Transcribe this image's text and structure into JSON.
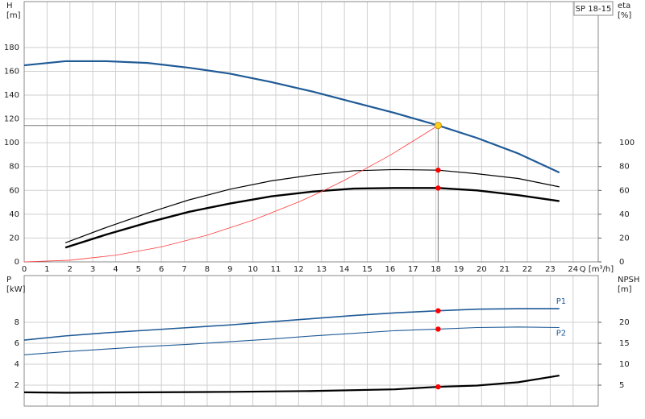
{
  "chart_data": [
    {
      "type": "line",
      "xlim": [
        0,
        25.1
      ],
      "xticks": [
        0,
        1,
        2,
        3,
        4,
        5,
        6,
        7,
        8,
        9,
        10,
        11,
        12,
        13,
        14,
        15,
        16,
        17,
        18,
        19,
        20,
        21,
        22,
        23,
        24
      ],
      "xtick_labels": true,
      "xlabel": "Q [m³/h]",
      "ylim": [
        0,
        218.5
      ],
      "yticks": [
        0,
        20,
        40,
        60,
        80,
        100,
        120,
        140,
        160,
        180
      ],
      "ylabel": [
        "H",
        "[m]"
      ],
      "y2lim": [
        0,
        218.5
      ],
      "y2ticks": [
        0,
        20,
        40,
        60,
        80,
        100
      ],
      "y2label": [
        "eta",
        "[%]"
      ],
      "grid": true,
      "legend_title": "SP 18-15",
      "duty_x": 18.1,
      "duty_lines": true,
      "series": [
        {
          "color": "#1f5a96",
          "line_width": 2.2,
          "marker_color": "#ffd21f",
          "x": [
            0,
            1.8,
            3.6,
            5.4,
            7.2,
            9,
            10.8,
            12.6,
            14.4,
            16.2,
            18.1,
            19.8,
            21.6,
            23.4
          ],
          "values": [
            165,
            168.5,
            168.5,
            167,
            163,
            158,
            151,
            143,
            134,
            125,
            114.5,
            104,
            91,
            75
          ]
        },
        {
          "color": "#000000",
          "line_width": 1.2,
          "axis": "y2",
          "marker_color": "#ff0000",
          "x": [
            1.8,
            3.6,
            5.4,
            7.2,
            9,
            10.8,
            12.6,
            14.4,
            16.2,
            18.1,
            19.8,
            21.6,
            23.4
          ],
          "values": [
            16,
            29,
            41,
            52,
            61,
            68,
            73,
            76.5,
            77.5,
            77,
            74,
            70,
            63
          ]
        },
        {
          "color": "#000000",
          "line_width": 2.4,
          "axis": "y2",
          "marker_color": "#ff0000",
          "x": [
            1.8,
            3.6,
            5.4,
            7.2,
            9,
            10.8,
            12.6,
            14.4,
            16.2,
            18.1,
            19.8,
            21.6,
            23.4
          ],
          "values": [
            12,
            23,
            33,
            42,
            49,
            55,
            59,
            61.5,
            62,
            62,
            60,
            56,
            51
          ]
        },
        {
          "color": "#ff3b3b",
          "line_width": 0.8,
          "x": [
            0,
            2,
            4,
            6,
            8,
            10,
            12,
            13,
            14,
            16,
            18.1
          ],
          "values": [
            0,
            1.4,
            5.6,
            12.6,
            22.4,
            35,
            50.3,
            59,
            68.5,
            89.5,
            114.5
          ]
        }
      ]
    },
    {
      "type": "line",
      "xlim": [
        0,
        25.1
      ],
      "xticks": [
        0,
        1,
        2,
        3,
        4,
        5,
        6,
        7,
        8,
        9,
        10,
        11,
        12,
        13,
        14,
        15,
        16,
        17,
        18,
        19,
        20,
        21,
        22,
        23,
        24
      ],
      "xtick_labels": false,
      "ylim": [
        0,
        12.46
      ],
      "yticks": [
        2,
        4,
        6,
        8
      ],
      "ylabel": [
        "P",
        "[kW]"
      ],
      "y2lim": [
        0,
        31.15
      ],
      "y2ticks": [
        5,
        10,
        15,
        20
      ],
      "y2label": [
        "NPSH",
        "[m]"
      ],
      "grid": true,
      "duty_x": 18.1,
      "duty_lines": false,
      "series": [
        {
          "name": "P1",
          "color": "#1f5a96",
          "line_width": 1.6,
          "marker_color": "#ff0000",
          "x": [
            0,
            1.8,
            3.6,
            5.4,
            7.2,
            9,
            10.8,
            12.6,
            14.4,
            16.2,
            18.1,
            19.8,
            21.6,
            23.4
          ],
          "values": [
            6.3,
            6.7,
            7.0,
            7.25,
            7.5,
            7.75,
            8.05,
            8.35,
            8.65,
            8.9,
            9.1,
            9.25,
            9.3,
            9.3
          ]
        },
        {
          "name": "P2",
          "color": "#1f5a96",
          "line_width": 1.1,
          "marker_color": "#ff0000",
          "x": [
            0,
            1.8,
            3.6,
            5.4,
            7.2,
            9,
            10.8,
            12.6,
            14.4,
            16.2,
            18.1,
            19.8,
            21.6,
            23.4
          ],
          "values": [
            4.9,
            5.2,
            5.45,
            5.7,
            5.9,
            6.15,
            6.4,
            6.7,
            6.95,
            7.2,
            7.35,
            7.5,
            7.55,
            7.5
          ]
        },
        {
          "color": "#000000",
          "line_width": 2.2,
          "axis": "y2",
          "marker_color": "#ff0000",
          "x": [
            0,
            1.8,
            5.4,
            9,
            12.6,
            16.2,
            18.1,
            19.8,
            21.6,
            23.4
          ],
          "values": [
            3.3,
            3.2,
            3.3,
            3.4,
            3.6,
            4.0,
            4.6,
            4.9,
            5.7,
            7.3
          ]
        }
      ]
    }
  ]
}
